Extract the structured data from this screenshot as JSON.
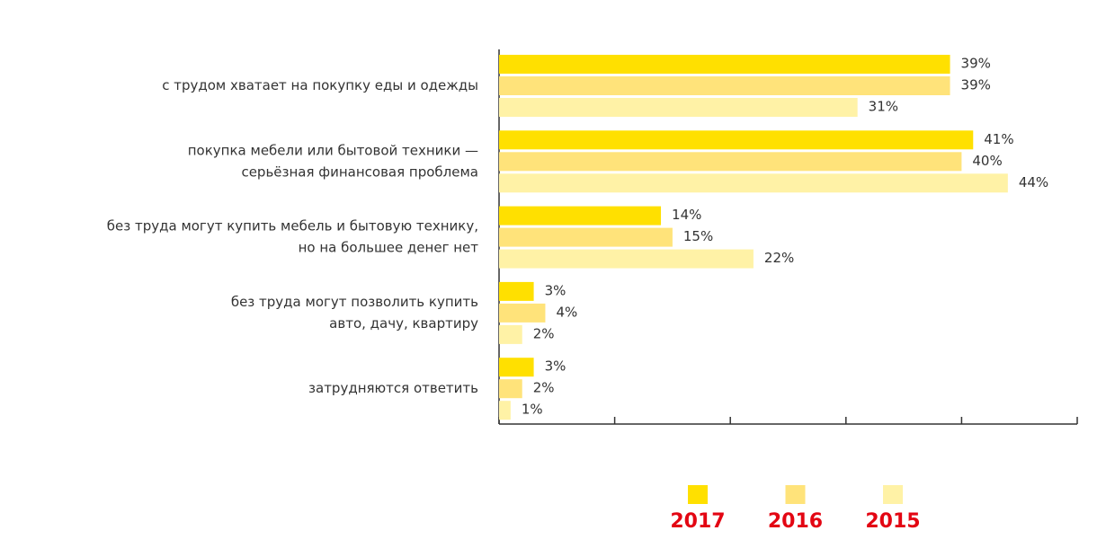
{
  "chart_data": {
    "type": "hbar",
    "categories": [
      "с трудом хватает на покупку еды и одежды",
      "покупка мебели или бытовой техники —\nсерьёзная финансовая проблема",
      "без труда могут купить мебель и бытовую технику,\nно на большее денег нет",
      "без труда могут позволить купить\nавто, дачу, квартиру",
      "затрудняются ответить"
    ],
    "series": [
      {
        "name": "2017",
        "color": "#ffe000",
        "values": [
          39,
          41,
          14,
          3,
          3
        ],
        "value_labels": [
          "39%",
          "41%",
          "14%",
          "3%",
          "3%"
        ]
      },
      {
        "name": "2016",
        "color": "#ffe37a",
        "values": [
          39,
          40,
          15,
          4,
          2
        ],
        "value_labels": [
          "39%",
          "40%",
          "15%",
          "4%",
          "2%"
        ]
      },
      {
        "name": "2015",
        "color": "#fff2a6",
        "values": [
          31,
          44,
          22,
          2,
          1
        ],
        "value_labels": [
          "31%",
          "44%",
          "22%",
          "2%",
          "1%"
        ]
      }
    ],
    "xlim": [
      0,
      50
    ],
    "xticks": [
      0,
      10,
      20,
      30,
      40,
      50
    ]
  }
}
